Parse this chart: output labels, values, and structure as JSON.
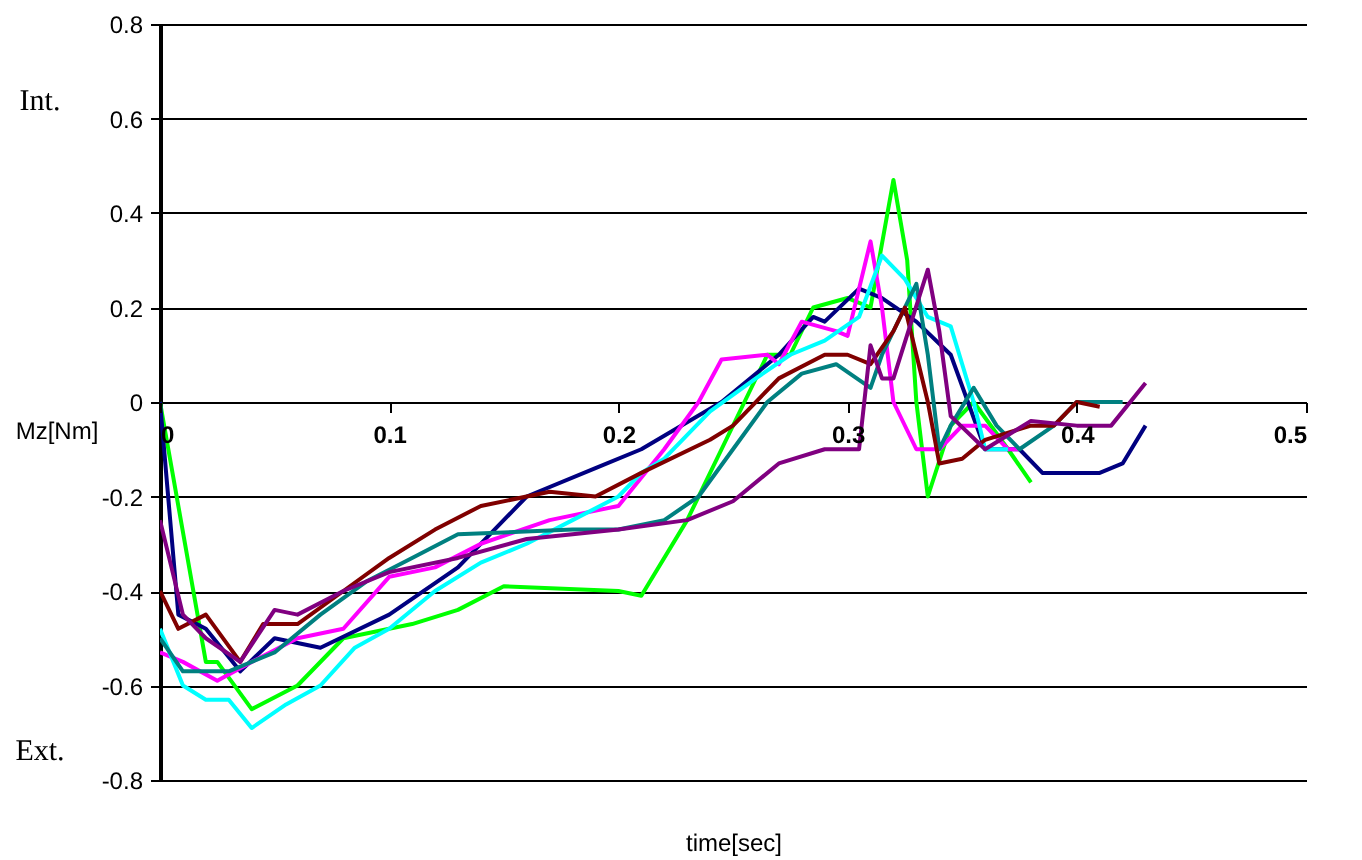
{
  "chart_data": {
    "type": "line",
    "xlabel": "time[sec]",
    "ylabel": "Mz[Nm]",
    "annotations": [
      "Int.",
      "Ext."
    ],
    "xlim": [
      0,
      0.5
    ],
    "xticks": [
      {
        "value": 0,
        "label": "0"
      },
      0.1,
      0.2,
      0.3,
      0.4,
      0.5
    ],
    "ylim": [
      -0.8,
      0.8
    ],
    "yticks": [
      -0.8,
      -0.6,
      -0.4,
      -0.2,
      {
        "value": 0,
        "label": "0"
      },
      0.2,
      0.4,
      0.6,
      0.8
    ],
    "grid": "y",
    "marker": "none",
    "line_style": "solid",
    "series": [
      {
        "color": "#00ff00",
        "x": [
          0,
          0.02,
          0.025,
          0.04,
          0.06,
          0.08,
          0.11,
          0.13,
          0.15,
          0.2,
          0.21,
          0.23,
          0.255,
          0.265,
          0.275,
          0.285,
          0.3,
          0.31,
          0.32,
          0.326,
          0.33,
          0.335,
          0.345,
          0.355,
          0.37,
          0.38
        ],
        "values": [
          0,
          -0.55,
          -0.55,
          -0.65,
          -0.6,
          -0.5,
          -0.47,
          -0.44,
          -0.39,
          -0.4,
          -0.41,
          -0.25,
          0,
          0.1,
          0.1,
          0.2,
          0.22,
          0.2,
          0.47,
          0.3,
          0,
          -0.2,
          -0.05,
          0,
          -0.1,
          -0.17
        ]
      },
      {
        "color": "#000080",
        "x": [
          0,
          0.008,
          0.02,
          0.035,
          0.05,
          0.07,
          0.1,
          0.13,
          0.16,
          0.19,
          0.21,
          0.245,
          0.27,
          0.285,
          0.29,
          0.305,
          0.315,
          0.33,
          0.345,
          0.36,
          0.375,
          0.385,
          0.41,
          0.42,
          0.43
        ],
        "values": [
          0,
          -0.45,
          -0.48,
          -0.57,
          -0.5,
          -0.52,
          -0.45,
          -0.35,
          -0.2,
          -0.14,
          -0.1,
          0,
          0.1,
          0.18,
          0.17,
          0.24,
          0.22,
          0.17,
          0.1,
          -0.1,
          -0.1,
          -0.15,
          -0.15,
          -0.13,
          -0.05
        ]
      },
      {
        "color": "#ff00ff",
        "x": [
          0,
          0.01,
          0.025,
          0.04,
          0.06,
          0.08,
          0.1,
          0.12,
          0.14,
          0.17,
          0.2,
          0.22,
          0.235,
          0.245,
          0.265,
          0.27,
          0.28,
          0.295,
          0.3,
          0.31,
          0.315,
          0.32,
          0.33,
          0.34,
          0.35,
          0.36,
          0.37,
          0.375
        ],
        "values": [
          -0.53,
          -0.55,
          -0.59,
          -0.55,
          -0.5,
          -0.48,
          -0.37,
          -0.35,
          -0.3,
          -0.25,
          -0.22,
          -0.1,
          0,
          0.09,
          0.1,
          0.08,
          0.17,
          0.15,
          0.14,
          0.34,
          0.2,
          0,
          -0.1,
          -0.1,
          -0.05,
          -0.05,
          -0.1,
          -0.1
        ]
      },
      {
        "color": "#00ffff",
        "x": [
          0,
          0.01,
          0.02,
          0.03,
          0.04,
          0.055,
          0.07,
          0.085,
          0.1,
          0.12,
          0.14,
          0.16,
          0.18,
          0.2,
          0.21,
          0.22,
          0.24,
          0.26,
          0.275,
          0.29,
          0.305,
          0.315,
          0.325,
          0.335,
          0.345,
          0.355,
          0.36,
          0.37
        ],
        "values": [
          -0.48,
          -0.6,
          -0.63,
          -0.63,
          -0.69,
          -0.64,
          -0.6,
          -0.52,
          -0.48,
          -0.4,
          -0.34,
          -0.3,
          -0.25,
          -0.2,
          -0.15,
          -0.12,
          -0.02,
          0.05,
          0.1,
          0.13,
          0.18,
          0.31,
          0.26,
          0.18,
          0.16,
          0,
          -0.1,
          -0.1
        ]
      },
      {
        "color": "#008080",
        "x": [
          0,
          0.01,
          0.03,
          0.05,
          0.07,
          0.09,
          0.11,
          0.13,
          0.18,
          0.2,
          0.22,
          0.235,
          0.25,
          0.265,
          0.28,
          0.295,
          0.31,
          0.315,
          0.325,
          0.33,
          0.335,
          0.34,
          0.345,
          0.355,
          0.365,
          0.375,
          0.39,
          0.4,
          0.42
        ],
        "values": [
          -0.5,
          -0.57,
          -0.57,
          -0.53,
          -0.45,
          -0.38,
          -0.33,
          -0.28,
          -0.27,
          -0.27,
          -0.25,
          -0.2,
          -0.1,
          0,
          0.06,
          0.08,
          0.03,
          0.1,
          0.2,
          0.25,
          0.1,
          -0.1,
          -0.05,
          0.03,
          -0.05,
          -0.1,
          -0.05,
          0,
          0
        ]
      },
      {
        "color": "#800000",
        "x": [
          0,
          0.008,
          0.02,
          0.035,
          0.045,
          0.06,
          0.08,
          0.1,
          0.12,
          0.14,
          0.17,
          0.19,
          0.21,
          0.24,
          0.25,
          0.27,
          0.29,
          0.3,
          0.31,
          0.32,
          0.325,
          0.335,
          0.34,
          0.35,
          0.36,
          0.38,
          0.39,
          0.4,
          0.41
        ],
        "values": [
          -0.4,
          -0.48,
          -0.45,
          -0.55,
          -0.47,
          -0.47,
          -0.4,
          -0.33,
          -0.27,
          -0.22,
          -0.19,
          -0.2,
          -0.15,
          -0.08,
          -0.05,
          0.05,
          0.1,
          0.1,
          0.08,
          0.15,
          0.2,
          0,
          -0.13,
          -0.12,
          -0.08,
          -0.05,
          -0.05,
          0,
          -0.01
        ]
      },
      {
        "color": "#800080",
        "x": [
          0,
          0.01,
          0.02,
          0.035,
          0.05,
          0.06,
          0.08,
          0.1,
          0.13,
          0.16,
          0.2,
          0.23,
          0.25,
          0.27,
          0.29,
          0.305,
          0.31,
          0.315,
          0.32,
          0.335,
          0.34,
          0.345,
          0.36,
          0.38,
          0.4,
          0.415,
          0.43
        ],
        "values": [
          -0.25,
          -0.45,
          -0.5,
          -0.55,
          -0.44,
          -0.45,
          -0.4,
          -0.36,
          -0.33,
          -0.29,
          -0.27,
          -0.25,
          -0.21,
          -0.13,
          -0.1,
          -0.1,
          0.12,
          0.05,
          0.05,
          0.28,
          0.15,
          -0.03,
          -0.1,
          -0.04,
          -0.05,
          -0.05,
          0.04
        ]
      }
    ]
  }
}
